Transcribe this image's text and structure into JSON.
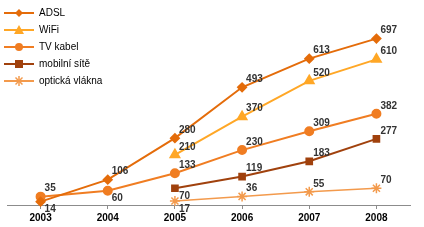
{
  "chart_data": {
    "type": "line",
    "categories": [
      "2003",
      "2004",
      "2005",
      "2006",
      "2007",
      "2008"
    ],
    "series": [
      {
        "name": "ADSL",
        "color": "#e46c0a",
        "marker": "diamond",
        "values": [
          14,
          106,
          280,
          493,
          613,
          697
        ]
      },
      {
        "name": "WiFi",
        "color": "#ffa726",
        "marker": "triangle",
        "values": [
          null,
          null,
          210,
          370,
          520,
          610
        ]
      },
      {
        "name": "TV kabel",
        "color": "#f07d22",
        "marker": "circle",
        "values": [
          35,
          60,
          133,
          230,
          309,
          382
        ]
      },
      {
        "name": "mobilní sítě",
        "color": "#a0410d",
        "marker": "square",
        "values": [
          null,
          null,
          70,
          119,
          183,
          277
        ]
      },
      {
        "name": "optická vlákna",
        "color": "#f39a4c",
        "marker": "star",
        "values": [
          null,
          null,
          17,
          36,
          55,
          70
        ]
      }
    ],
    "legend": "upper left",
    "data_labels": true,
    "tick_labels": "x",
    "grid": false
  }
}
